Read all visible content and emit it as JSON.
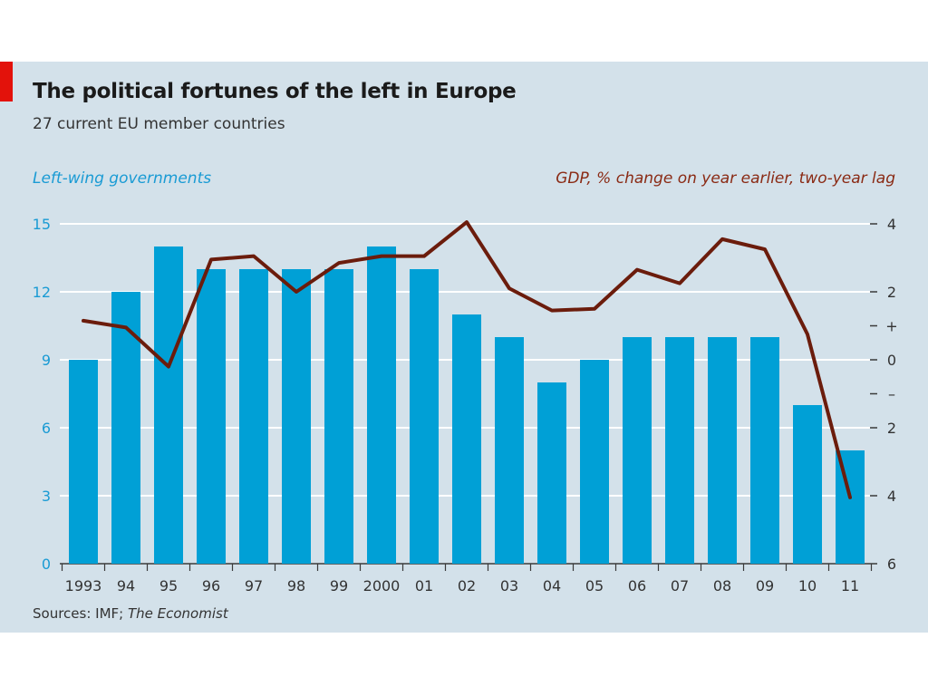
{
  "title": "The political fortunes of the left in Europe",
  "subtitle": "27 current EU member countries",
  "source": {
    "prefix": "Sources: IMF; ",
    "emphasis": "The Economist"
  },
  "colors": {
    "background": "#d3e1ea",
    "accent": "#e3120b",
    "bars": "#00a0d6",
    "line": "#6b1c0c",
    "left_axis_text": "#1a9bd4",
    "right_axis_text": "#8a2a14"
  },
  "chart_data": {
    "type": "bar+line",
    "categories": [
      "1993",
      "94",
      "95",
      "96",
      "97",
      "98",
      "99",
      "2000",
      "01",
      "02",
      "03",
      "04",
      "05",
      "06",
      "07",
      "08",
      "09",
      "10",
      "11"
    ],
    "series": [
      {
        "name": "Left-wing governments",
        "type": "bar",
        "axis": "left",
        "values": [
          9,
          12,
          14,
          13,
          13,
          13,
          13,
          14,
          13,
          11,
          10,
          8,
          9,
          10,
          10,
          10,
          10,
          7,
          5
        ]
      },
      {
        "name": "GDP, % change on year earlier, two-year lag",
        "type": "line",
        "axis": "right",
        "values": [
          1.15,
          0.95,
          -0.2,
          2.95,
          3.05,
          2.0,
          2.85,
          3.05,
          3.05,
          4.05,
          2.1,
          1.45,
          1.5,
          2.65,
          2.25,
          3.55,
          3.25,
          0.75,
          -4.05
        ]
      }
    ],
    "left_axis": {
      "label": "Left-wing governments",
      "ylim": [
        0,
        15
      ],
      "ticks": [
        0,
        3,
        6,
        9,
        12,
        15
      ],
      "tick_labels": [
        "0",
        "3",
        "6",
        "9",
        "12",
        "15"
      ]
    },
    "right_axis": {
      "label": "GDP, % change on year earlier, two-year lag",
      "ylim": [
        -6,
        4
      ],
      "ticks": [
        4,
        2,
        1,
        0,
        -1,
        -2,
        -4,
        -6
      ],
      "tick_labels": [
        "4",
        "2",
        "+",
        "0",
        "–",
        "2",
        "4",
        "6"
      ]
    },
    "grid": true
  }
}
